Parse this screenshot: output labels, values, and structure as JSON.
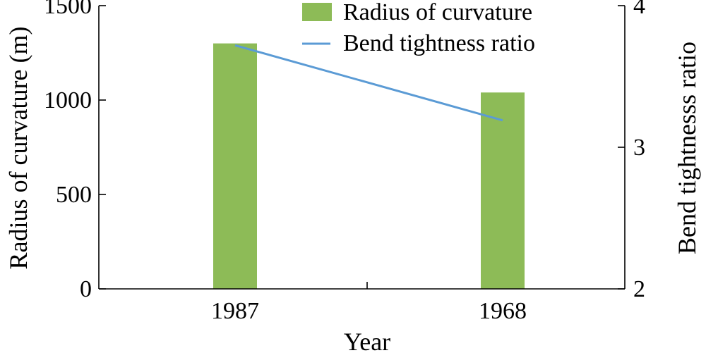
{
  "chart_data": {
    "type": "bar",
    "categories": [
      "1987",
      "1968"
    ],
    "series": [
      {
        "name": "Radius of curvature",
        "kind": "bar",
        "axis": "left",
        "values": [
          1300,
          1040
        ],
        "color": "#8dbb57"
      },
      {
        "name": "Bend tightness ratio",
        "kind": "line",
        "axis": "right",
        "values": [
          3.72,
          3.19
        ],
        "color": "#5b9bd5"
      }
    ],
    "xlabel": "Year",
    "ylabel": "Radius of curvature (m)",
    "y2label": "Bend tightnesss ratio",
    "ylim": [
      0,
      1500
    ],
    "y2lim": [
      2,
      4
    ],
    "yticks": [
      "0",
      "500",
      "1000",
      "1500"
    ],
    "yticks_values": [
      0,
      500,
      1000,
      1500
    ],
    "y2ticks": [
      "2",
      "3",
      "4"
    ],
    "y2ticks_values": [
      2,
      3,
      4
    ],
    "legend_position": "top-center",
    "grid": false
  }
}
